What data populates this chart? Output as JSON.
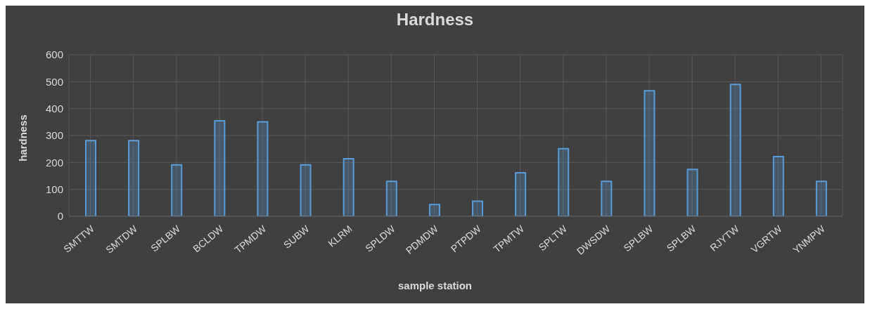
{
  "chart_data": {
    "type": "bar",
    "title": "Hardness",
    "xlabel": "sample station",
    "ylabel": "hardness",
    "categories": [
      "SMTTW",
      "SMTDW",
      "SPLBW",
      "BCLDW",
      "TPMDW",
      "SUBW",
      "KLRM",
      "SPLDW",
      "PDMDW",
      "PTPDW",
      "TPMTW",
      "SPLTW",
      "DWSDW",
      "SPLBW",
      "SPLBW",
      "RJYTW",
      "VGRTW",
      "YNMPW"
    ],
    "values": [
      281,
      281,
      191,
      355,
      351,
      191,
      214,
      130,
      44,
      56,
      162,
      251,
      130,
      466,
      174,
      490,
      222,
      130
    ],
    "color": "#5b9bd5",
    "ylim": [
      0,
      600
    ],
    "yticks": [
      0,
      100,
      200,
      300,
      400,
      500,
      600
    ],
    "grid": true
  }
}
